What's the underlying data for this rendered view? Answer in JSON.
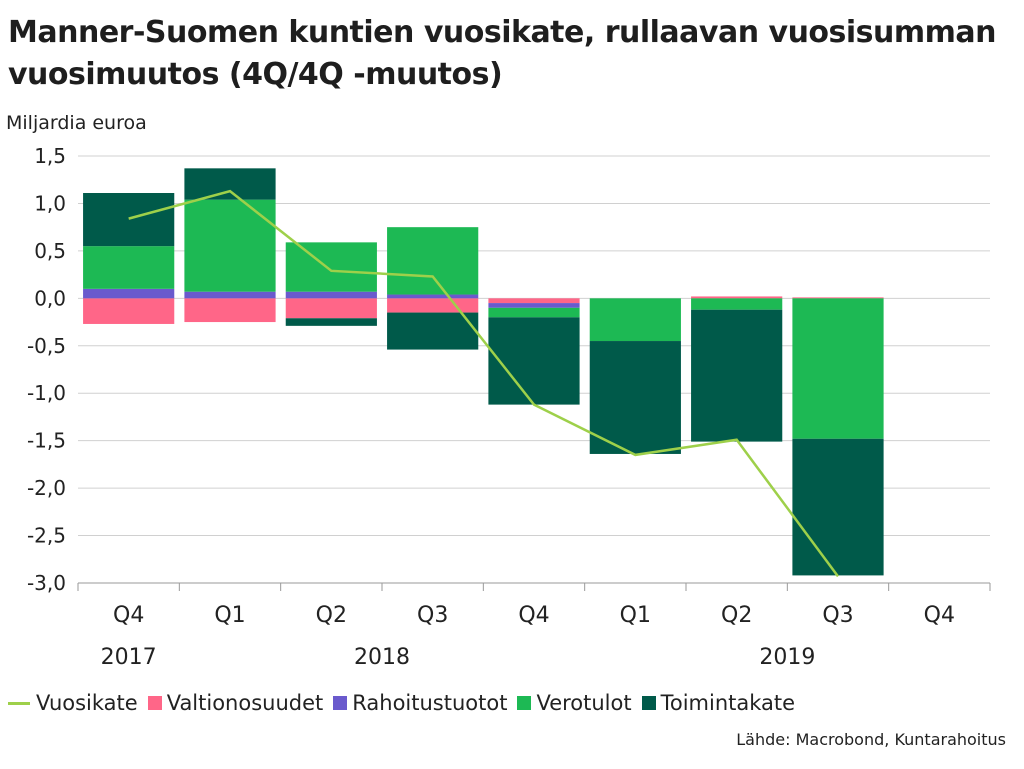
{
  "title_line1": "Manner-Suomen kuntien vuosikate, rullaavan vuosisumman",
  "title_line2": "vuosimuutos (4Q/4Q -muutos)",
  "unit_label": "Miljardia euroa",
  "source": "Lähde: Macrobond, Kuntarahoitus",
  "chart_data": {
    "type": "bar",
    "stacked": true,
    "title": "Manner-Suomen kuntien vuosikate, rullaavan vuosisumman vuosimuutos (4Q/4Q -muutos)",
    "ylabel": "Miljardia euroa",
    "ylim": [
      -3.0,
      1.5
    ],
    "yticks": [
      1.5,
      1.0,
      0.5,
      0.0,
      -0.5,
      -1.0,
      -1.5,
      -2.0,
      -2.5,
      -3.0
    ],
    "ytick_labels": [
      "1,5",
      "1,0",
      "0,5",
      "0,0",
      "-0,5",
      "-1,0",
      "-1,5",
      "-2,0",
      "-2,5",
      "-3,0"
    ],
    "grid": true,
    "legend_position": "bottom",
    "categories": [
      "Q4",
      "Q1",
      "Q2",
      "Q3",
      "Q4",
      "Q1",
      "Q2",
      "Q3",
      "Q4"
    ],
    "year_labels": [
      {
        "label": "2017",
        "category_index": 0
      },
      {
        "label": "2018",
        "category_index": 2.5
      },
      {
        "label": "2019",
        "category_index": 6.5
      }
    ],
    "series": [
      {
        "name": "Valtionosuudet",
        "color": "#ff6688",
        "values": [
          -0.27,
          -0.25,
          -0.21,
          -0.15,
          -0.05,
          0.0,
          0.02,
          0.01,
          null
        ]
      },
      {
        "name": "Rahoitustuotot",
        "color": "#6a5acd",
        "values": [
          0.1,
          0.07,
          0.07,
          0.04,
          -0.05,
          0.0,
          0.0,
          0.0,
          null
        ]
      },
      {
        "name": "Verotulot",
        "color": "#1db954",
        "values": [
          0.45,
          0.97,
          0.52,
          0.71,
          -0.1,
          -0.45,
          -0.12,
          -1.48,
          null
        ]
      },
      {
        "name": "Toimintakate",
        "color": "#005a4a",
        "values": [
          0.56,
          0.33,
          -0.08,
          -0.39,
          -0.92,
          -1.19,
          -1.39,
          -1.44,
          null
        ]
      }
    ],
    "line_series": {
      "name": "Vuosikate",
      "color": "#9ed04a",
      "values": [
        0.84,
        1.13,
        0.29,
        0.23,
        -1.12,
        -1.65,
        -1.49,
        -2.93,
        null
      ]
    }
  }
}
